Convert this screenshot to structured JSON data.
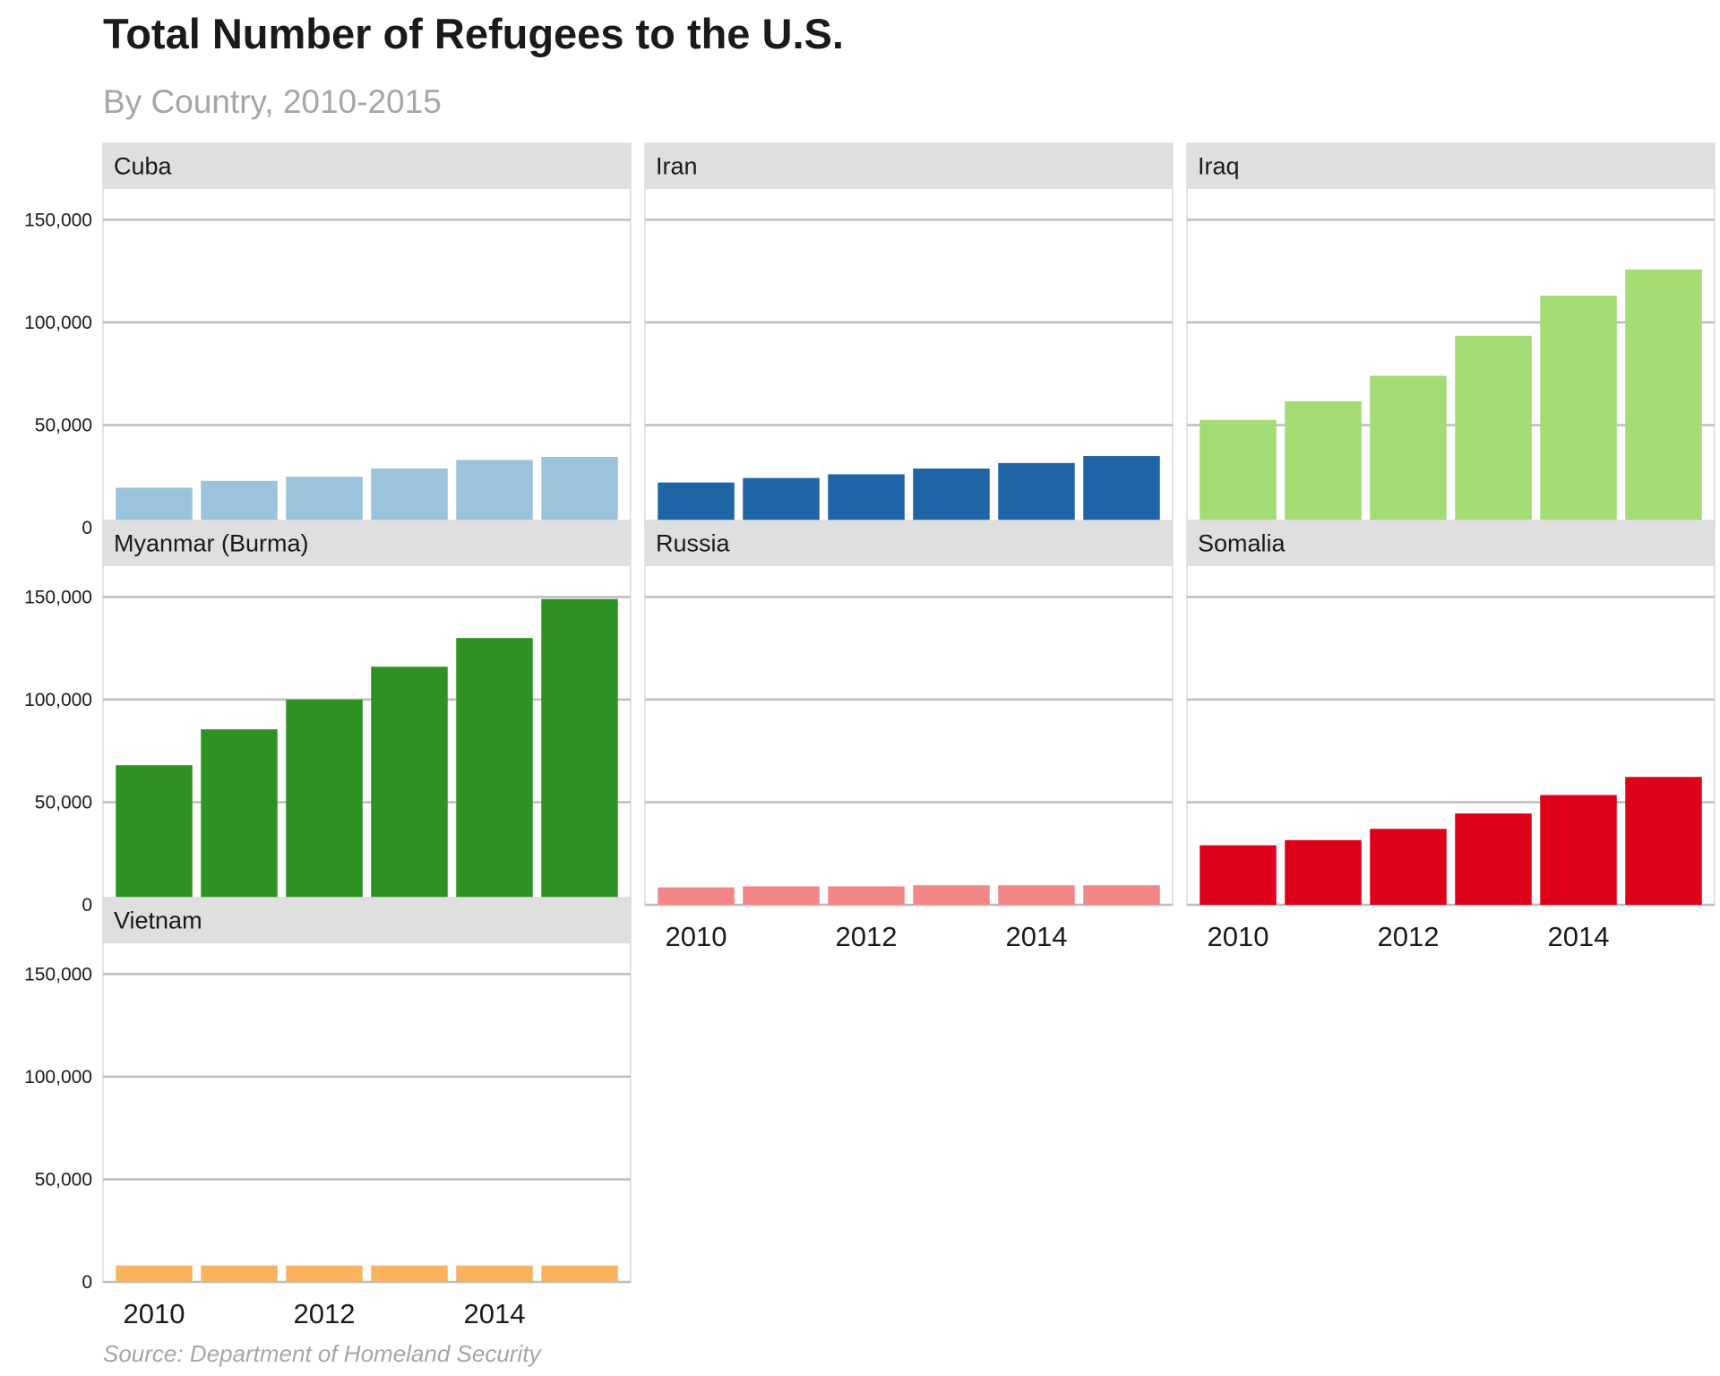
{
  "chart_data": {
    "type": "bar",
    "layout": "facet-grid",
    "title": "Total Number of Refugees to the U.S.",
    "subtitle": "By Country, 2010-2015",
    "caption": "Source: Department of Homeland Security",
    "xlabel": "",
    "ylabel": "",
    "ylim": [
      0,
      165000
    ],
    "y_ticks": [
      0,
      50000,
      100000,
      150000
    ],
    "y_tick_labels": [
      "0",
      "50,000",
      "100,000",
      "150,000"
    ],
    "x": [
      2010,
      2011,
      2012,
      2013,
      2014,
      2015
    ],
    "x_ticks": [
      2010,
      2012,
      2014
    ],
    "x_tick_labels": [
      "2010",
      "2012",
      "2014"
    ],
    "grid": true,
    "legend": "none",
    "panels": [
      {
        "name": "Cuba",
        "color": "#9bc4dc",
        "values": [
          19500,
          22800,
          24800,
          28800,
          33000,
          34500
        ]
      },
      {
        "name": "Iran",
        "color": "#1f65a6",
        "values": [
          22000,
          24200,
          26000,
          28800,
          31500,
          34900
        ]
      },
      {
        "name": "Iraq",
        "color": "#a3db74",
        "values": [
          52500,
          61600,
          74000,
          93500,
          113000,
          125800
        ]
      },
      {
        "name": "Myanmar (Burma)",
        "color": "#2e9222",
        "values": [
          68000,
          85500,
          100000,
          116000,
          130000,
          149000
        ]
      },
      {
        "name": "Russia",
        "color": "#f38787",
        "values": [
          8500,
          9000,
          9000,
          9500,
          9500,
          9500
        ]
      },
      {
        "name": "Somalia",
        "color": "#dd0019",
        "values": [
          29000,
          31500,
          37000,
          44500,
          53500,
          62300
        ]
      },
      {
        "name": "Vietnam",
        "color": "#f9b35e",
        "values": [
          8000,
          8000,
          8000,
          8000,
          8000,
          8000
        ]
      }
    ]
  }
}
